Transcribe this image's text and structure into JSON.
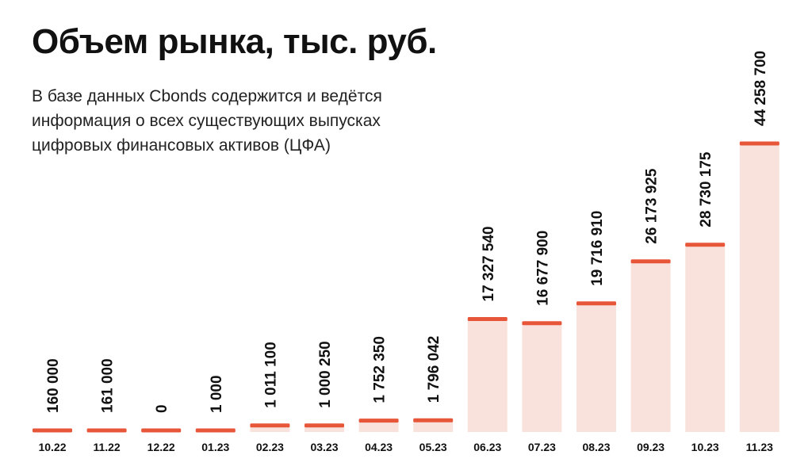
{
  "header": {
    "title": "Объем рынка, тыс. руб.",
    "subtitle_lines": [
      "В базе данных Cbonds содержится и ведётся",
      "информация о всех существующих выпусках",
      "цифровых финансовых активов (ЦФА)"
    ]
  },
  "chart_data": {
    "type": "bar",
    "title": "Объем рынка, тыс. руб.",
    "categories": [
      "10.22",
      "11.22",
      "12.22",
      "01.23",
      "02.23",
      "03.23",
      "04.23",
      "05.23",
      "06.23",
      "07.23",
      "08.23",
      "09.23",
      "10.23",
      "11.23"
    ],
    "values": [
      160000,
      161000,
      0,
      1000,
      1011100,
      1000250,
      1752350,
      1796042,
      17327540,
      16677900,
      19716910,
      26173925,
      28730175,
      44258700
    ],
    "value_labels": [
      "160 000",
      "161 000",
      "0",
      "1 000",
      "1 011 100",
      "1 000 250",
      "1 752 350",
      "1 796 042",
      "17 327 540",
      "16 677 900",
      "19 716 910",
      "26 173 925",
      "28 730 175",
      "44 258 700"
    ],
    "ylim": [
      0,
      44258700
    ],
    "grid": false,
    "colors": {
      "bar_fill": "#f9e2dc",
      "bar_cap": "#e8563a",
      "text": "#111111"
    }
  }
}
